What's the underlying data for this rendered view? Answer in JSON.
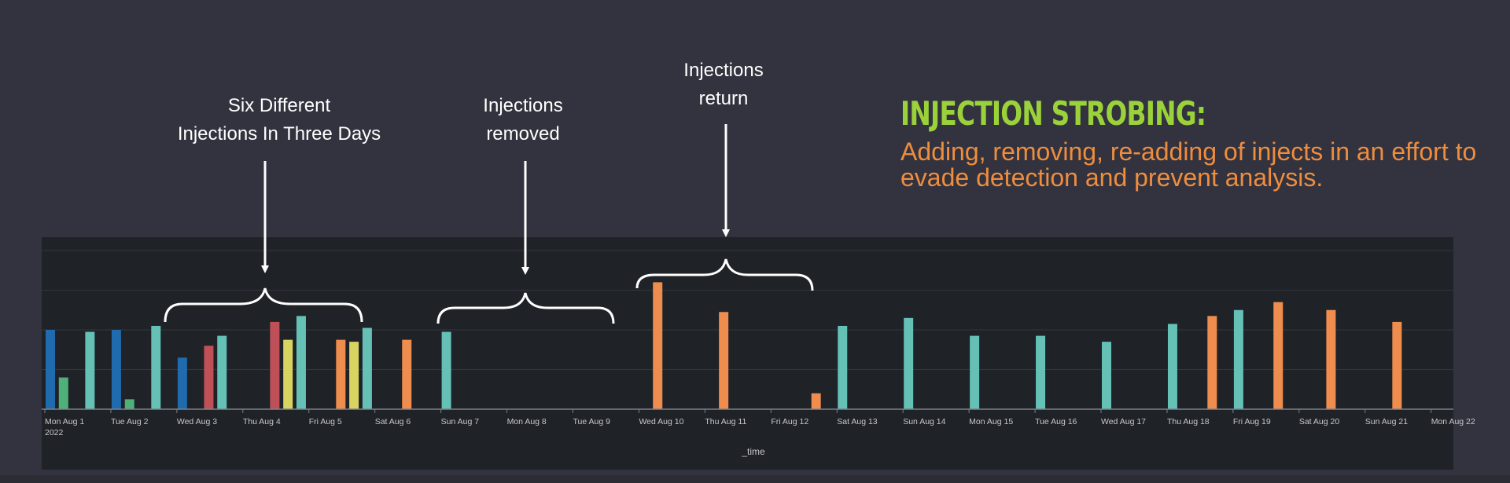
{
  "annotations": {
    "six_injections": [
      "Six Different",
      "Injections In Three Days"
    ],
    "removed": [
      "Injections",
      "removed"
    ],
    "return": [
      "Injections",
      "return"
    ]
  },
  "headline": "INJECTION STROBING:",
  "description": "Adding, removing, re-adding of injects in an effort to evade detection and prevent analysis.",
  "colors": {
    "background": "#32333f",
    "panel": "#1f2227",
    "headline": "#9bd23a",
    "description": "#ef8d3e"
  },
  "chart_data": {
    "type": "bar",
    "xlabel": "_time",
    "ylabel": "",
    "categories": [
      "Mon Aug 1",
      "Tue Aug 2",
      "Wed Aug 3",
      "Thu Aug 4",
      "Fri Aug 5",
      "Sat Aug 6",
      "Sun Aug 7",
      "Mon Aug 8",
      "Tue Aug 9",
      "Wed Aug 10",
      "Thu Aug 11",
      "Fri Aug 12",
      "Sat Aug 13",
      "Sun Aug 14",
      "Mon Aug 15",
      "Tue Aug 16",
      "Wed Aug 17",
      "Thu Aug 18",
      "Fri Aug 19",
      "Sat Aug 20",
      "Sun Aug 21",
      "Mon Aug 22"
    ],
    "category_sublabel": "2022",
    "ylim": [
      0,
      8
    ],
    "grid": true,
    "bars": [
      {
        "day": 0,
        "slot": 0,
        "value": 4.0,
        "color": "#1f6bad"
      },
      {
        "day": 0,
        "slot": 1,
        "value": 1.6,
        "color": "#4fb07a"
      },
      {
        "day": 0,
        "slot": 3,
        "value": 3.9,
        "color": "#65c0b6"
      },
      {
        "day": 1,
        "slot": 0,
        "value": 4.0,
        "color": "#1f6bad"
      },
      {
        "day": 1,
        "slot": 1,
        "value": 0.5,
        "color": "#4fb07a"
      },
      {
        "day": 1,
        "slot": 3,
        "value": 4.2,
        "color": "#65c0b6"
      },
      {
        "day": 2,
        "slot": 0,
        "value": 2.6,
        "color": "#1f6bad"
      },
      {
        "day": 2,
        "slot": 2,
        "value": 3.2,
        "color": "#bf5058"
      },
      {
        "day": 2,
        "slot": 3,
        "value": 3.7,
        "color": "#65c0b6"
      },
      {
        "day": 3,
        "slot": 2,
        "value": 4.4,
        "color": "#bf5058"
      },
      {
        "day": 3,
        "slot": 3,
        "value": 3.5,
        "color": "#d8d461"
      },
      {
        "day": 3,
        "slot": 4,
        "value": 4.7,
        "color": "#65c0b6"
      },
      {
        "day": 4,
        "slot": 2,
        "value": 3.5,
        "color": "#ef8d4e"
      },
      {
        "day": 4,
        "slot": 3,
        "value": 3.4,
        "color": "#d8d461"
      },
      {
        "day": 4,
        "slot": 4,
        "value": 4.1,
        "color": "#65c0b6"
      },
      {
        "day": 5,
        "slot": 2,
        "value": 3.5,
        "color": "#ef8d4e"
      },
      {
        "day": 6,
        "slot": 0,
        "value": 3.9,
        "color": "#65c0b6"
      },
      {
        "day": 9,
        "slot": 1,
        "value": 6.4,
        "color": "#ef8d4e"
      },
      {
        "day": 10,
        "slot": 1,
        "value": 4.9,
        "color": "#ef8d4e"
      },
      {
        "day": 11,
        "slot": 3,
        "value": 0.8,
        "color": "#ef8d4e"
      },
      {
        "day": 12,
        "slot": 0,
        "value": 4.2,
        "color": "#65c0b6"
      },
      {
        "day": 13,
        "slot": 0,
        "value": 4.6,
        "color": "#65c0b6"
      },
      {
        "day": 14,
        "slot": 0,
        "value": 3.7,
        "color": "#65c0b6"
      },
      {
        "day": 15,
        "slot": 0,
        "value": 3.7,
        "color": "#65c0b6"
      },
      {
        "day": 16,
        "slot": 0,
        "value": 3.4,
        "color": "#65c0b6"
      },
      {
        "day": 17,
        "slot": 0,
        "value": 4.3,
        "color": "#65c0b6"
      },
      {
        "day": 17,
        "slot": 3,
        "value": 4.7,
        "color": "#ef8d4e"
      },
      {
        "day": 18,
        "slot": 0,
        "value": 5.0,
        "color": "#65c0b6"
      },
      {
        "day": 18,
        "slot": 3,
        "value": 5.4,
        "color": "#ef8d4e"
      },
      {
        "day": 19,
        "slot": 2,
        "value": 5.0,
        "color": "#ef8d4e"
      },
      {
        "day": 20,
        "slot": 2,
        "value": 4.4,
        "color": "#ef8d4e"
      }
    ]
  }
}
